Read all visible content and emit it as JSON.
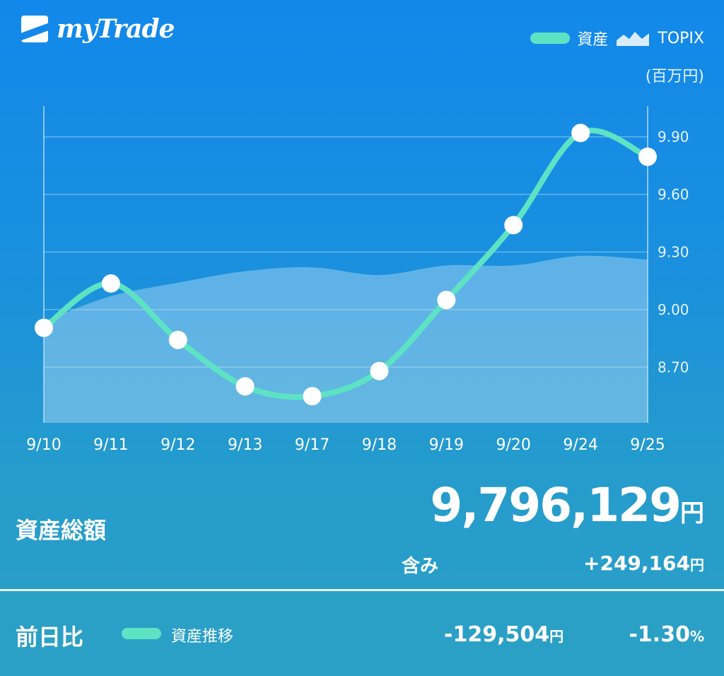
{
  "app": {
    "title": "myTrade"
  },
  "legend": {
    "asset": "資産",
    "topix": "TOPIX",
    "unit": "(百万円)"
  },
  "colors": {
    "asset_line": "#5de3c4",
    "topix_area": "#6db8e6",
    "background": "#1288ea"
  },
  "chart_data": {
    "type": "line",
    "categories": [
      "9/10",
      "9/11",
      "9/12",
      "9/13",
      "9/17",
      "9/18",
      "9/19",
      "9/20",
      "9/24",
      "9/25"
    ],
    "series": [
      {
        "name": "資産",
        "type": "line",
        "values": [
          8.905,
          9.136,
          8.842,
          8.6,
          8.549,
          8.68,
          9.05,
          9.44,
          9.92,
          9.796
        ]
      },
      {
        "name": "TOPIX",
        "type": "area",
        "values": [
          8.94,
          9.07,
          9.14,
          9.2,
          9.22,
          9.18,
          9.23,
          9.23,
          9.28,
          9.26
        ]
      }
    ],
    "yticks": [
      "9.90",
      "9.60",
      "9.30",
      "9.00",
      "8.70"
    ],
    "ylim": [
      8.41,
      10.06
    ],
    "ylabel": "(百万円)",
    "y_axis_position": "right",
    "grid": true
  },
  "summary": {
    "total_label": "資産総額",
    "total_value": "9,796,129",
    "yen": "円",
    "incl_label": "含み",
    "incl_value": "+249,164"
  },
  "footer": {
    "label": "前日比",
    "legend": "資産推移",
    "diff_value": "-129,504",
    "diff_pct": "-1.30",
    "pct": "%"
  }
}
